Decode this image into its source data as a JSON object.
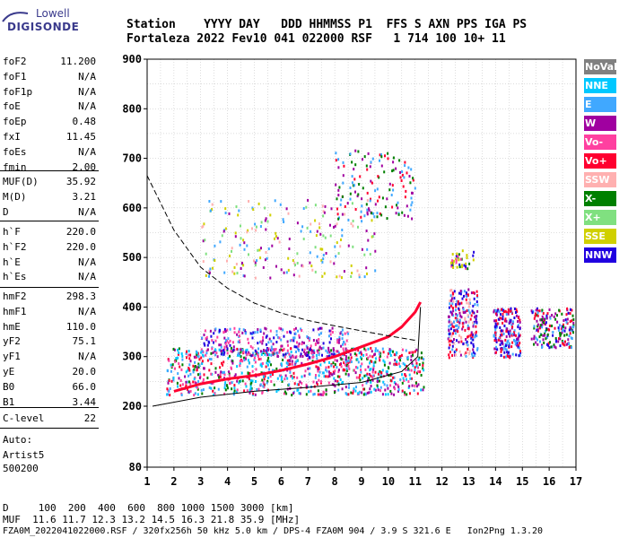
{
  "logo": {
    "top": "Lowell",
    "main": "DIGISONDE"
  },
  "header": {
    "row1": "Station    YYYY DAY   DDD HHMMSS P1  FFS S AXN PPS IGA PS",
    "row2": "Fortaleza 2022 Fev10 041 022000 RSF   1 714 100 10+ 11"
  },
  "params": [
    {
      "name": "foF2",
      "value": "11.200"
    },
    {
      "name": "foF1",
      "value": "N/A"
    },
    {
      "name": "foF1p",
      "value": "N/A"
    },
    {
      "name": "foE",
      "value": "N/A"
    },
    {
      "name": "foEp",
      "value": "0.48"
    },
    {
      "name": "fxI",
      "value": "11.45"
    },
    {
      "name": "foEs",
      "value": "N/A"
    },
    {
      "name": "fmin",
      "value": "2.00"
    },
    {
      "name": "MUF(D)",
      "value": "35.92"
    },
    {
      "name": "M(D)",
      "value": "3.21"
    },
    {
      "name": "D",
      "value": "N/A"
    },
    {
      "name": "h`F",
      "value": "220.0"
    },
    {
      "name": "h`F2",
      "value": "220.0"
    },
    {
      "name": "h`E",
      "value": "N/A"
    },
    {
      "name": "h`Es",
      "value": "N/A"
    },
    {
      "name": "hmF2",
      "value": "298.3"
    },
    {
      "name": "hmF1",
      "value": "N/A"
    },
    {
      "name": "hmE",
      "value": "110.0"
    },
    {
      "name": "yF2",
      "value": "75.1"
    },
    {
      "name": "yF1",
      "value": "N/A"
    },
    {
      "name": "yE",
      "value": "20.0"
    },
    {
      "name": "B0",
      "value": "66.0"
    },
    {
      "name": "B1",
      "value": "3.44"
    },
    {
      "name": "C-level",
      "value": "22"
    }
  ],
  "auto": {
    "line1": "Auto:",
    "line2": "Artist5",
    "line3": "500200"
  },
  "bottom": {
    "d_row": "D     100  200  400  600  800 1000 1500 3000 [km]",
    "muf_row": "MUF  11.6 11.7 12.3 13.2 14.5 16.3 21.8 35.9 [MHz]",
    "file_row": "FZA0M_2022041022000.RSF / 320fx256h 50 kHz 5.0 km / DPS-4 FZA0M 904 / 3.9 S 321.6 E   Ion2Png 1.3.20"
  },
  "legend": [
    {
      "label": "NoVal",
      "color": "#808080",
      "text": "#ffffff"
    },
    {
      "label": "NNE",
      "color": "#00c8ff",
      "text": "#ffffff"
    },
    {
      "label": "E",
      "color": "#40a8ff",
      "text": "#ffffff"
    },
    {
      "label": "W",
      "color": "#a000a0",
      "text": "#ffffff"
    },
    {
      "label": "Vo-",
      "color": "#ff40a0",
      "text": "#ffffff"
    },
    {
      "label": "Vo+",
      "color": "#ff0030",
      "text": "#ffffff"
    },
    {
      "label": "SSW",
      "color": "#ffb0b0",
      "text": "#ffffff"
    },
    {
      "label": "X-",
      "color": "#008000",
      "text": "#ffffff"
    },
    {
      "label": "X+",
      "color": "#80e080",
      "text": "#ffffff"
    },
    {
      "label": "SSE",
      "color": "#d0d000",
      "text": "#ffffff"
    },
    {
      "label": "NNW",
      "color": "#2000e0",
      "text": "#ffffff"
    }
  ],
  "chart_data": {
    "type": "scatter",
    "xlim": [
      1,
      17
    ],
    "ylim": [
      80,
      900
    ],
    "x_ticks": [
      1,
      2,
      3,
      4,
      5,
      6,
      7,
      8,
      9,
      10,
      11,
      12,
      13,
      14,
      15,
      16,
      17
    ],
    "y_ticks": [
      80,
      200,
      300,
      400,
      500,
      600,
      700,
      800,
      900
    ],
    "grid": true,
    "clusters": [
      {
        "x": [
          1.7,
          11.3
        ],
        "y": [
          225,
          320
        ],
        "colors": [
          "#00c8ff",
          "#40a8ff",
          "#ff0030",
          "#a000a0",
          "#008000",
          "#ff40a0"
        ],
        "count": 900
      },
      {
        "x": [
          3.0,
          8.5
        ],
        "y": [
          300,
          360
        ],
        "colors": [
          "#a000a0",
          "#2000e0",
          "#40a8ff",
          "#ff40a0"
        ],
        "count": 300
      },
      {
        "x": [
          3.0,
          9.5
        ],
        "y": [
          460,
          620
        ],
        "colors": [
          "#40a8ff",
          "#ffb0b0",
          "#d0d000",
          "#80e080",
          "#a000a0"
        ],
        "count": 220
      },
      {
        "x": [
          8.0,
          11.0
        ],
        "y": [
          580,
          720
        ],
        "colors": [
          "#ff0030",
          "#008000",
          "#40a8ff",
          "#a000a0"
        ],
        "count": 140
      },
      {
        "x": [
          12.2,
          13.3
        ],
        "y": [
          300,
          440
        ],
        "colors": [
          "#2000e0",
          "#a000a0",
          "#ffb0b0",
          "#ff0030",
          "#40a8ff"
        ],
        "count": 230
      },
      {
        "x": [
          13.9,
          14.9
        ],
        "y": [
          300,
          400
        ],
        "colors": [
          "#2000e0",
          "#40a8ff",
          "#a000a0",
          "#ff0030"
        ],
        "count": 200
      },
      {
        "x": [
          15.3,
          16.9
        ],
        "y": [
          320,
          400
        ],
        "colors": [
          "#a000a0",
          "#40a8ff",
          "#2000e0",
          "#ff0030",
          "#008000"
        ],
        "count": 180
      },
      {
        "x": [
          12.3,
          13.2
        ],
        "y": [
          480,
          520
        ],
        "colors": [
          "#ff40a0",
          "#d0d000",
          "#008000",
          "#2000e0"
        ],
        "count": 40
      }
    ],
    "trace": {
      "x": [
        2,
        3,
        4,
        5,
        6,
        7,
        8,
        9,
        10,
        10.5,
        11,
        11.2
      ],
      "y": [
        230,
        245,
        255,
        262,
        272,
        285,
        300,
        320,
        340,
        360,
        390,
        410
      ]
    },
    "profile": {
      "x": [
        1.2,
        3,
        5,
        7,
        9,
        10.5,
        11.1,
        11.2
      ],
      "y": [
        200,
        218,
        230,
        238,
        248,
        270,
        300,
        400
      ]
    },
    "muf_curve": {
      "x": [
        1,
        2,
        3,
        4,
        5,
        6,
        7,
        8,
        9,
        10,
        11
      ],
      "y": [
        665,
        555,
        480,
        438,
        408,
        388,
        373,
        362,
        352,
        342,
        333
      ]
    }
  }
}
